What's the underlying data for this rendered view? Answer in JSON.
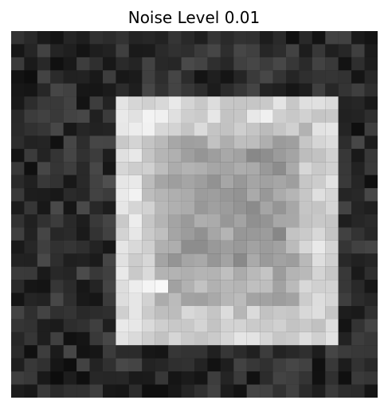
{
  "title": "Noise Level 0.01",
  "colormap": "grayscale",
  "image": {
    "rows": 28,
    "cols": 28,
    "description_shape": "rounded square"
  }
}
